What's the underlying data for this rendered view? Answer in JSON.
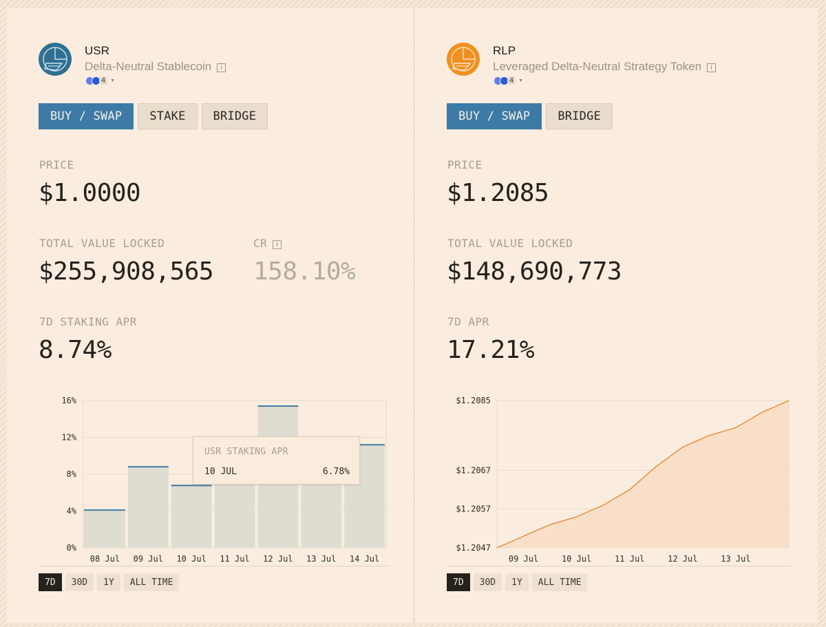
{
  "usr": {
    "name": "USR",
    "subtitle": "Delta-Neutral Stablecoin",
    "info_glyph": "i",
    "chain_count": "4",
    "actions": [
      "BUY / SWAP",
      "STAKE",
      "BRIDGE"
    ],
    "price_label": "PRICE",
    "price": "$1.0000",
    "tvl_label": "TOTAL VALUE LOCKED",
    "tvl": "$255,908,565",
    "cr_label": "CR",
    "cr": "158.10%",
    "apr_label": "7D STAKING APR",
    "apr": "8.74%",
    "tooltip": {
      "title": "USR STAKING APR",
      "date": "10 JUL",
      "value": "6.78%"
    },
    "ranges": [
      "7D",
      "30D",
      "1Y",
      "ALL TIME"
    ],
    "colors": {
      "accent": "#3d7aa6",
      "logo": "#2f7092"
    }
  },
  "rlp": {
    "name": "RLP",
    "subtitle": "Leveraged Delta-Neutral Strategy Token",
    "info_glyph": "i",
    "chain_count": "4",
    "actions": [
      "BUY / SWAP",
      "BRIDGE"
    ],
    "price_label": "PRICE",
    "price": "$1.2085",
    "tvl_label": "TOTAL VALUE LOCKED",
    "tvl": "$148,690,773",
    "apr_label": "7D APR",
    "apr": "17.21%",
    "ranges": [
      "7D",
      "30D",
      "1Y",
      "ALL TIME"
    ],
    "colors": {
      "accent": "#e8893a",
      "logo": "#f0901f"
    }
  },
  "chart_data": [
    {
      "type": "bar",
      "categories": [
        "08 Jul",
        "09 Jul",
        "10 Jul",
        "11 Jul",
        "12 Jul",
        "13 Jul",
        "14 Jul"
      ],
      "values": [
        4.1,
        8.8,
        6.78,
        7.2,
        15.4,
        8.6,
        11.2
      ],
      "ylim": [
        0,
        16
      ],
      "y_ticks": [
        "0%",
        "4%",
        "8%",
        "12%",
        "16%"
      ],
      "title": "",
      "xlabel": "",
      "ylabel": "",
      "colors": {
        "bar": "#dfddd2",
        "cap": "#3f7aa2"
      }
    },
    {
      "type": "area",
      "x": [
        "09 Jul",
        "10 Jul",
        "11 Jul",
        "12 Jul",
        "13 Jul"
      ],
      "points": [
        [
          "08 Jul 12:00",
          1.2047
        ],
        [
          "09 Jul",
          1.205
        ],
        [
          "09 Jul 12:00",
          1.2053
        ],
        [
          "10 Jul",
          1.2055
        ],
        [
          "10 Jul 12:00",
          1.2058
        ],
        [
          "11 Jul",
          1.2062
        ],
        [
          "11 Jul 12:00",
          1.2068
        ],
        [
          "12 Jul",
          1.2073
        ],
        [
          "12 Jul 12:00",
          1.2076
        ],
        [
          "13 Jul",
          1.2078
        ],
        [
          "13 Jul 12:00",
          1.2082
        ],
        [
          "14 Jul",
          1.2085
        ]
      ],
      "ylim": [
        1.2047,
        1.2085
      ],
      "y_ticks": [
        "$1.2047",
        "$1.2057",
        "$1.2067",
        "$1.2085"
      ],
      "y_tick_values": [
        1.2047,
        1.2057,
        1.2067,
        1.2085
      ],
      "title": "",
      "xlabel": "",
      "ylabel": "",
      "colors": {
        "line": "#e8893a",
        "fill": "#f8dcc3"
      }
    }
  ]
}
